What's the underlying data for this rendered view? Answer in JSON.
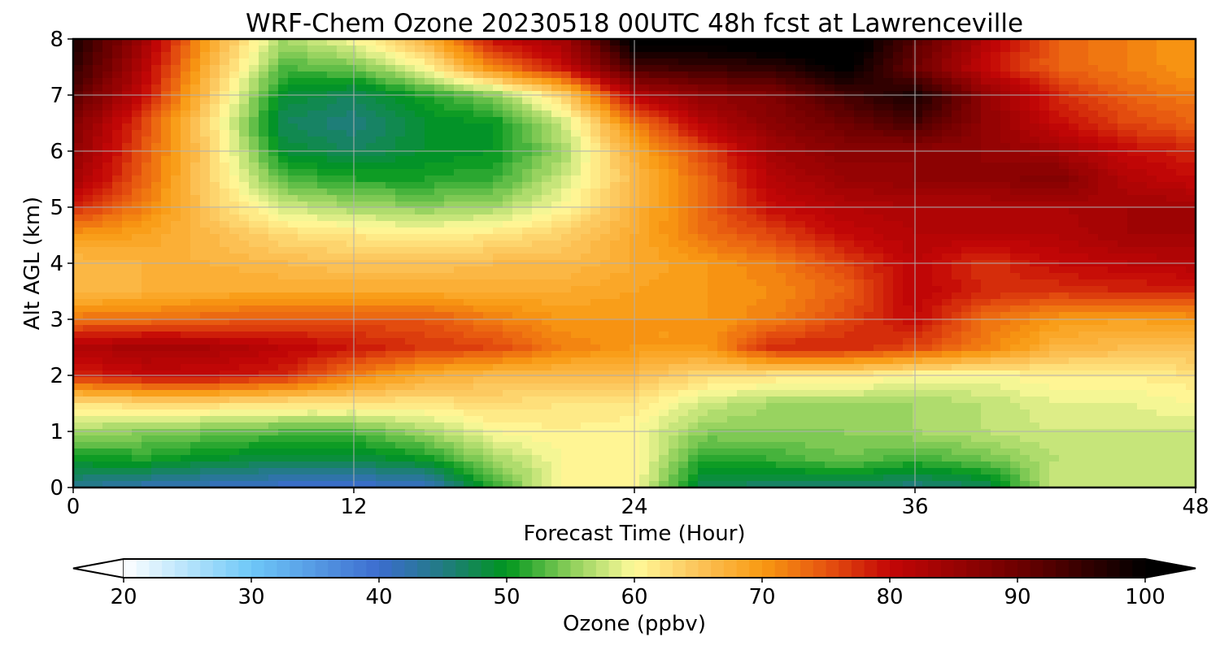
{
  "chart_data": {
    "type": "heatmap",
    "title": "WRF-Chem Ozone  20230518 00UTC 48h fcst at Lawrenceville",
    "xlabel": "Forecast Time (Hour)",
    "ylabel": "Alt AGL (km)",
    "xlim": [
      0,
      48
    ],
    "ylim": [
      0,
      8
    ],
    "x_ticks": [
      0,
      12,
      24,
      36,
      48
    ],
    "y_ticks": [
      0,
      1,
      2,
      3,
      4,
      5,
      6,
      7,
      8
    ],
    "grid": true,
    "colorbar": {
      "label": "Ozone  (ppbv)",
      "ticks": [
        20,
        30,
        40,
        50,
        60,
        70,
        80,
        90,
        100
      ],
      "range": [
        20,
        100
      ],
      "step": 1,
      "extend": "both",
      "color_stops": [
        {
          "v": 20,
          "c": "#ffffff"
        },
        {
          "v": 30,
          "c": "#6ec8f8"
        },
        {
          "v": 40,
          "c": "#3c6ccf"
        },
        {
          "v": 45,
          "c": "#217b82"
        },
        {
          "v": 50,
          "c": "#00961e"
        },
        {
          "v": 55,
          "c": "#8ccf5a"
        },
        {
          "v": 60,
          "c": "#fffa9a"
        },
        {
          "v": 65,
          "c": "#fcc45a"
        },
        {
          "v": 70,
          "c": "#f99a12"
        },
        {
          "v": 75,
          "c": "#e65410"
        },
        {
          "v": 80,
          "c": "#c40606"
        },
        {
          "v": 90,
          "c": "#6e0000"
        },
        {
          "v": 100,
          "c": "#000000"
        }
      ]
    },
    "grid_values": {
      "x": [
        0,
        3,
        6,
        9,
        12,
        15,
        18,
        21,
        24,
        27,
        30,
        33,
        36,
        39,
        42,
        45,
        48
      ],
      "y": [
        0,
        0.5,
        1,
        1.5,
        2,
        2.5,
        3,
        3.5,
        4,
        4.5,
        5,
        5.5,
        6,
        6.5,
        7,
        7.5,
        8
      ],
      "z": [
        [
          44,
          42,
          41,
          40,
          40,
          40,
          52,
          60,
          60,
          47,
          46,
          46,
          45,
          47,
          58,
          58,
          58
        ],
        [
          50,
          51,
          49,
          48,
          48,
          50,
          56,
          60,
          61,
          51,
          52,
          54,
          52,
          54,
          57,
          57,
          58
        ],
        [
          56,
          55,
          54,
          53,
          53,
          56,
          60,
          61,
          60,
          55,
          55,
          55,
          56,
          57,
          58,
          58,
          58
        ],
        [
          62,
          63,
          63,
          62,
          62,
          62,
          63,
          62,
          62,
          58,
          56,
          56,
          56,
          57,
          59,
          59,
          60
        ],
        [
          78,
          80,
          80,
          78,
          72,
          68,
          66,
          66,
          66,
          63,
          62,
          62,
          60,
          60,
          61,
          61,
          62
        ],
        [
          82,
          84,
          83,
          81,
          79,
          77,
          76,
          72,
          70,
          70,
          78,
          78,
          76,
          72,
          67,
          66,
          66
        ],
        [
          73,
          73,
          74,
          75,
          75,
          75,
          72,
          70,
          70,
          70,
          72,
          76,
          80,
          73,
          70,
          69,
          70
        ],
        [
          66,
          67,
          68,
          68,
          68,
          68,
          68,
          68,
          69,
          70,
          71,
          74,
          81,
          78,
          77,
          78,
          78
        ],
        [
          66,
          67,
          67,
          66,
          65,
          65,
          66,
          66,
          68,
          70,
          72,
          76,
          81,
          77,
          80,
          81,
          82
        ],
        [
          70,
          69,
          66,
          63,
          62,
          61,
          62,
          64,
          68,
          73,
          76,
          80,
          82,
          82,
          82,
          84,
          84
        ],
        [
          78,
          72,
          64,
          58,
          56,
          55,
          56,
          60,
          67,
          74,
          80,
          82,
          83,
          83,
          83,
          84,
          84
        ],
        [
          84,
          74,
          63,
          53,
          51,
          51,
          52,
          58,
          66,
          74,
          82,
          85,
          86,
          86,
          88,
          82,
          80
        ],
        [
          86,
          75,
          63,
          49,
          47,
          49,
          50,
          56,
          68,
          76,
          84,
          87,
          86,
          86,
          84,
          80,
          78
        ],
        [
          88,
          76,
          62,
          47,
          45,
          49,
          50,
          58,
          72,
          82,
          87,
          90,
          94,
          86,
          80,
          76,
          74
        ],
        [
          92,
          80,
          64,
          49,
          47,
          51,
          55,
          64,
          82,
          86,
          88,
          94,
          98,
          86,
          78,
          74,
          72
        ],
        [
          96,
          82,
          66,
          53,
          54,
          60,
          72,
          80,
          94,
          95,
          96,
          101,
          90,
          80,
          74,
          72,
          70
        ],
        [
          98,
          84,
          68,
          56,
          60,
          67,
          80,
          84,
          102,
          102,
          104,
          104,
          92,
          82,
          74,
          72,
          70
        ]
      ]
    }
  }
}
